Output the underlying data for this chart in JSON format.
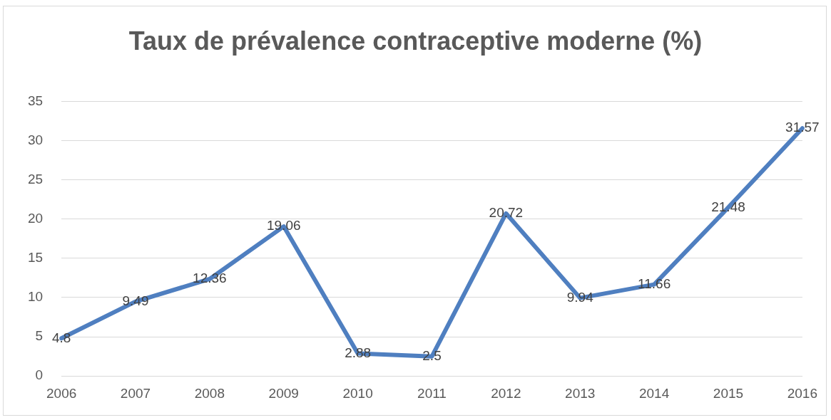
{
  "chart_data": {
    "type": "line",
    "title": "Taux de prévalence contraceptive moderne (%)",
    "categories": [
      "2006",
      "2007",
      "2008",
      "2009",
      "2010",
      "2011",
      "2012",
      "2013",
      "2014",
      "2015",
      "2016"
    ],
    "series": [
      {
        "color": "#4f7fc0",
        "values": [
          4.8,
          9.49,
          12.36,
          19.06,
          2.88,
          2.5,
          20.72,
          9.94,
          11.66,
          21.48,
          31.57
        ]
      }
    ],
    "ylim": [
      0,
      35
    ],
    "yticks": [
      0,
      5,
      10,
      15,
      20,
      25,
      30,
      35
    ],
    "grid": "y",
    "legend": false,
    "marker": "none",
    "line_style": "solid",
    "data_labels": true
  }
}
